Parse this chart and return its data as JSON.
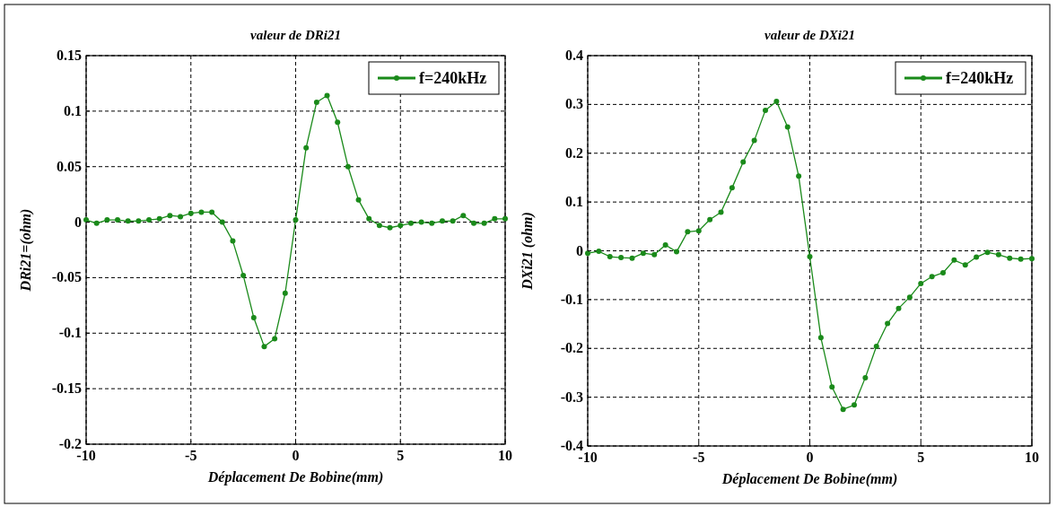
{
  "chart_data": [
    {
      "type": "line",
      "title": "valeur de DRi21",
      "xlabel": "Déplacement De Bobine(mm)",
      "ylabel": "DRi21=(ohm)",
      "xlim": [
        -10,
        10
      ],
      "xticks": [
        -10,
        -5,
        0,
        5,
        10
      ],
      "ylim": [
        -0.2,
        0.15
      ],
      "yticks": [
        -0.2,
        -0.15,
        -0.1,
        -0.05,
        0,
        0.05,
        0.1,
        0.15
      ],
      "grid": true,
      "legend": "top right",
      "marker": "circle",
      "line_style": "solid",
      "x": [
        -10,
        -9.5,
        -9,
        -8.5,
        -8,
        -7.5,
        -7,
        -6.5,
        -6,
        -5.5,
        -5,
        -4.5,
        -4,
        -3.5,
        -3,
        -2.5,
        -2,
        -1.5,
        -1,
        -0.5,
        0,
        0.5,
        1,
        1.5,
        2,
        2.5,
        3,
        3.5,
        4,
        4.5,
        5,
        5.5,
        6,
        6.5,
        7,
        7.5,
        8,
        8.5,
        9,
        9.5,
        10
      ],
      "series": [
        {
          "name": "f=240kHz",
          "color": "#1a8a1a",
          "values": [
            0.002,
            -0.001,
            0.002,
            0.002,
            0.001,
            0.001,
            0.002,
            0.003,
            0.006,
            0.005,
            0.008,
            0.009,
            0.009,
            0,
            -0.017,
            -0.048,
            -0.086,
            -0.112,
            -0.105,
            -0.064,
            0.002,
            0.067,
            0.108,
            0.114,
            0.09,
            0.05,
            0.02,
            0.003,
            -0.003,
            -0.005,
            -0.003,
            -0.001,
            0,
            -0.001,
            0.001,
            0.001,
            0.006,
            -0.001,
            -0.001,
            0.003,
            0.003
          ]
        }
      ]
    },
    {
      "type": "line",
      "title": "valeur de DXi21",
      "xlabel": "Déplacement De Bobine(mm)",
      "ylabel": "DXi21 (ohm)",
      "xlim": [
        -10,
        10
      ],
      "xticks": [
        -10,
        -5,
        0,
        5,
        10
      ],
      "ylim": [
        -0.4,
        0.4
      ],
      "yticks": [
        -0.4,
        -0.3,
        -0.2,
        -0.1,
        0,
        0.1,
        0.2,
        0.3,
        0.4
      ],
      "grid": true,
      "legend": "top right",
      "marker": "circle",
      "line_style": "solid",
      "x": [
        -10,
        -9.5,
        -9,
        -8.5,
        -8,
        -7.5,
        -7,
        -6.5,
        -6,
        -5.5,
        -5,
        -4.5,
        -4,
        -3.5,
        -3,
        -2.5,
        -2,
        -1.5,
        -1,
        -0.5,
        0,
        0.5,
        1,
        1.5,
        2,
        2.5,
        3,
        3.5,
        4,
        4.5,
        5,
        5.5,
        6,
        6.5,
        7,
        7.5,
        8,
        8.5,
        9,
        9.5,
        10
      ],
      "series": [
        {
          "name": "f=240kHz",
          "color": "#1a8a1a",
          "values": [
            -0.005,
            -0.001,
            -0.012,
            -0.014,
            -0.015,
            -0.005,
            -0.008,
            0.012,
            -0.002,
            0.039,
            0.041,
            0.064,
            0.079,
            0.129,
            0.182,
            0.226,
            0.288,
            0.306,
            0.254,
            0.153,
            -0.012,
            -0.178,
            -0.279,
            -0.325,
            -0.316,
            -0.26,
            -0.196,
            -0.149,
            -0.118,
            -0.095,
            -0.067,
            -0.053,
            -0.045,
            -0.019,
            -0.029,
            -0.013,
            -0.003,
            -0.008,
            -0.015,
            -0.017,
            -0.016
          ]
        }
      ]
    }
  ]
}
